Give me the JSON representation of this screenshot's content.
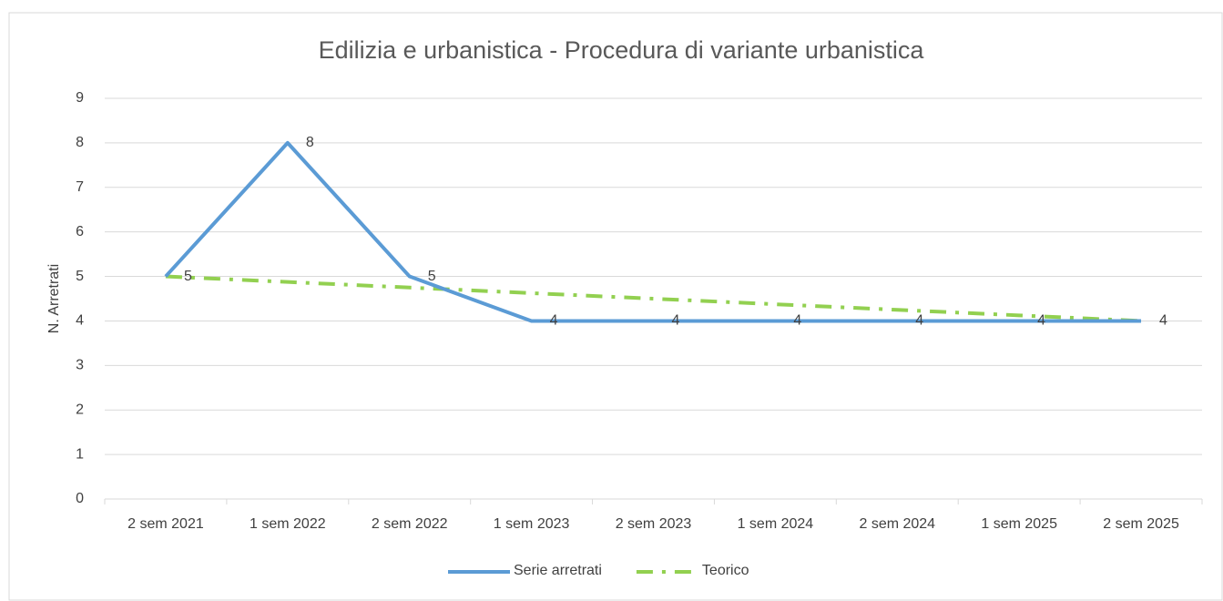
{
  "chart_data": {
    "type": "line",
    "title": "Edilizia e urbanistica - Procedura di variante urbanistica",
    "y_label": "N. Arretrati",
    "categories": [
      "2 sem 2021",
      "1 sem 2022",
      "2 sem 2022",
      "1 sem 2023",
      "2 sem 2023",
      "1 sem 2024",
      "2 sem 2024",
      "1 sem 2025",
      "2 sem 2025"
    ],
    "series": [
      {
        "name": "Serie arretrati",
        "color": "#5b9bd5",
        "dash": "solid",
        "data_labels": true,
        "values": [
          5,
          8,
          5,
          4,
          4,
          4,
          4,
          4,
          4
        ]
      },
      {
        "name": "Teorico",
        "color": "#92d050",
        "dash": "dash-dot",
        "data_labels": false,
        "values": [
          5,
          4.875,
          4.75,
          4.625,
          4.5,
          4.375,
          4.25,
          4.125,
          4
        ]
      }
    ],
    "ylim": [
      0,
      9
    ],
    "yticks": [
      0,
      1,
      2,
      3,
      4,
      5,
      6,
      7,
      8,
      9
    ],
    "grid": true,
    "legend": "bottom"
  }
}
